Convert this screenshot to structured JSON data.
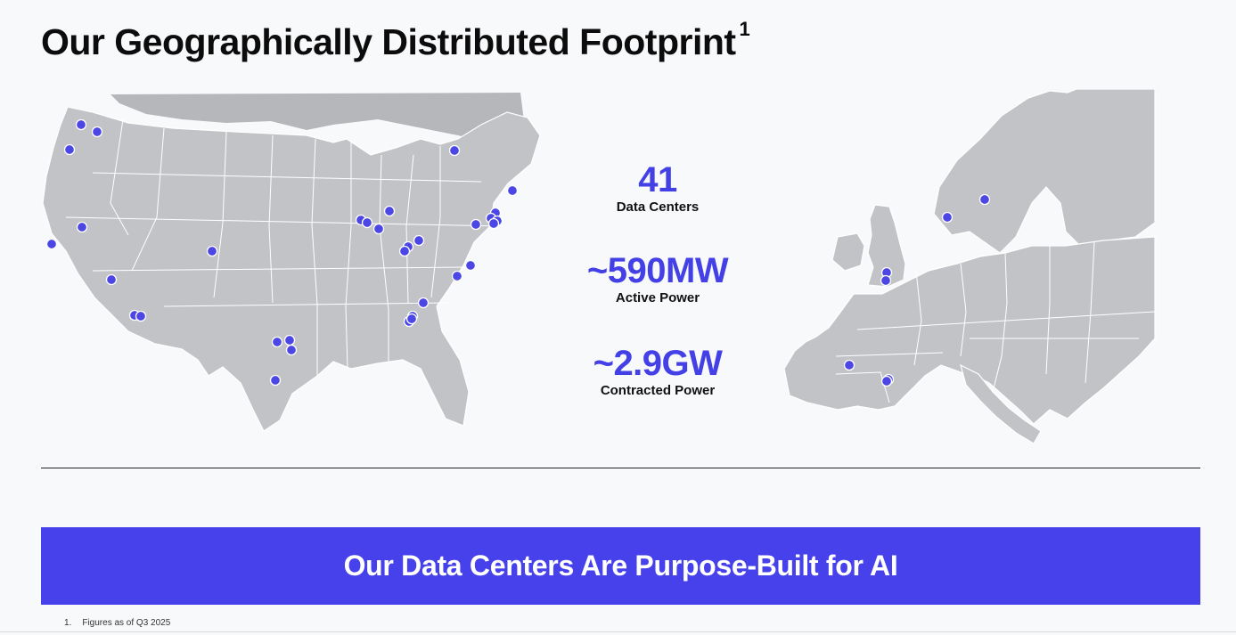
{
  "page": {
    "title": "Our Geographically Distributed Footprint",
    "title_footnote_ref": "1",
    "banner": "Our Data Centers Are Purpose-Built for AI",
    "footnote": {
      "number": "1.",
      "text": "Figures as of Q3 2025"
    }
  },
  "stats": [
    {
      "value": "41",
      "label": "Data Centers"
    },
    {
      "value": "~590MW",
      "label": "Active Power"
    },
    {
      "value": "~2.9GW",
      "label": "Contracted Power"
    }
  ],
  "colors": {
    "accent": "#4641ea",
    "stat_text": "#4340e6",
    "map_fill": "#c2c3c7",
    "map_border": "#ffffff",
    "marker": "#4b46e4"
  }
}
